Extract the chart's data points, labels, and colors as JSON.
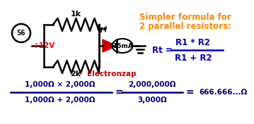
{
  "bg_color": "#ffffff",
  "text_56": "56",
  "voltage_label": "+12V",
  "voltage_color": "#ff0000",
  "res1_label": "1k",
  "res2_label": "2k",
  "led_color": "#cc0000",
  "current_label": "15mA",
  "electronzap_label": "Electronzap",
  "electronzap_color": "#cc0000",
  "title_line1": "Simpler formula for",
  "title_line2": "2 parallel resistors:",
  "title_color": "#ff8800",
  "formula_rt": "Rt = ",
  "formula_num": "R1 * R2",
  "formula_den": "R1 + R2",
  "formula_color": "#0000cc",
  "calc_line_num": "1,000Ω × 2,000Ω",
  "calc_line_den": "1,000Ω + 2,000Ω",
  "calc_result1_num": "2,000,000Ω",
  "calc_result1_den": "3,000Ω",
  "calc_result2": "666.666...Ω",
  "calc_color": "#000080"
}
